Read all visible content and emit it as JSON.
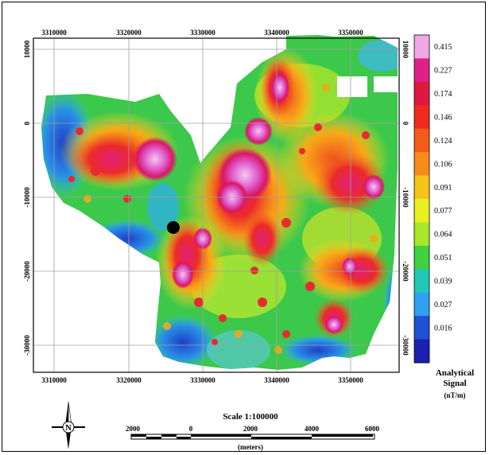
{
  "map": {
    "x_ticks": [
      "3310000",
      "3320000",
      "3330000",
      "3340000",
      "3350000"
    ],
    "y_ticks": [
      "10000",
      "0",
      "-10000",
      "-20000",
      "-30000"
    ]
  },
  "colorbar": {
    "values": [
      "0.415",
      "0.227",
      "0.174",
      "0.146",
      "0.124",
      "0.106",
      "0.091",
      "0.077",
      "0.064",
      "0.051",
      "0.039",
      "0.027",
      "0.016"
    ],
    "colors": [
      "#f0a8e8",
      "#e0208a",
      "#e01840",
      "#f02a20",
      "#f45a18",
      "#f88c18",
      "#f4c418",
      "#e8f020",
      "#a8e828",
      "#40d040",
      "#20c8b8",
      "#30a0f0",
      "#2050d8",
      "#1a20b0"
    ],
    "title_line1": "Analytical",
    "title_line2": "Signal",
    "units": "(nT/m)"
  },
  "scale": {
    "title": "Scale 1:100000",
    "ticks": [
      "2000",
      "0",
      "2000",
      "4000",
      "6000"
    ],
    "units": "(meters)"
  },
  "north": {
    "label": "N"
  }
}
